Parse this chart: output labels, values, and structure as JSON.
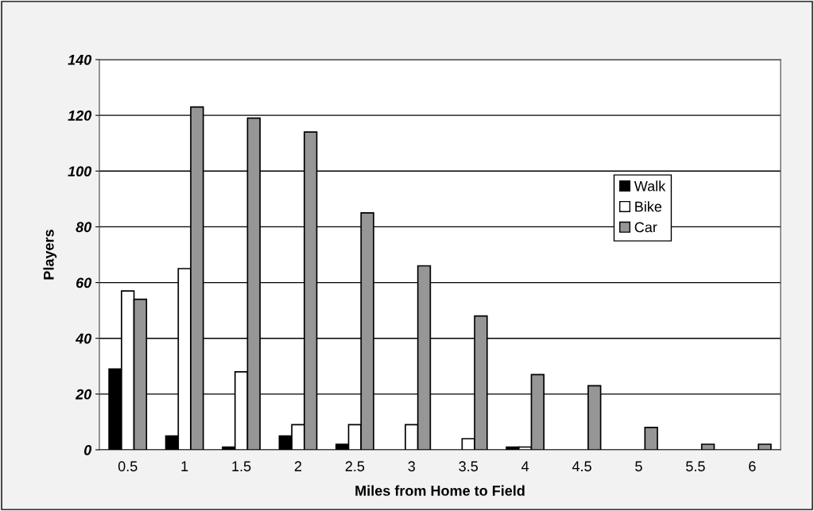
{
  "chart_data": {
    "type": "bar",
    "xlabel": "Miles from Home to Field",
    "ylabel": "Players",
    "categories": [
      "0.5",
      "1",
      "1.5",
      "2",
      "2.5",
      "3",
      "3.5",
      "4",
      "4.5",
      "5",
      "5.5",
      "6"
    ],
    "series": [
      {
        "name": "Walk",
        "color": "#000000",
        "values": [
          29,
          5,
          1,
          5,
          2,
          0,
          0,
          1,
          0,
          0,
          0,
          0
        ]
      },
      {
        "name": "Bike",
        "color": "#ffffff",
        "values": [
          57,
          65,
          28,
          9,
          9,
          9,
          4,
          1,
          0,
          0,
          0,
          0
        ]
      },
      {
        "name": "Car",
        "color": "#969696",
        "values": [
          54,
          123,
          119,
          114,
          85,
          66,
          48,
          27,
          23,
          8,
          2,
          2
        ]
      }
    ],
    "ylim": [
      0,
      140
    ],
    "yticks": [
      0,
      20,
      40,
      60,
      80,
      100,
      120,
      140
    ],
    "grid": "y",
    "legend": "right"
  }
}
